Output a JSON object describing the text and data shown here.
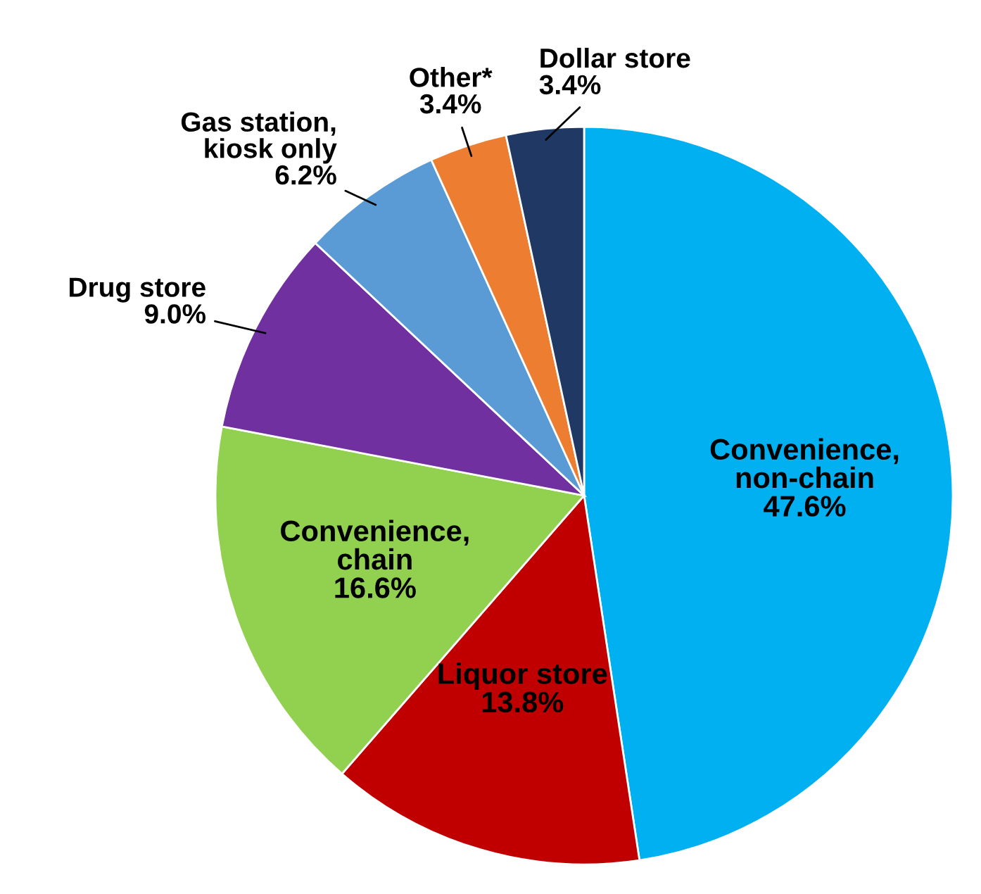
{
  "chart_data": {
    "type": "pie",
    "categories": [
      "Convenience,\nnon-chain",
      "Liquor store",
      "Convenience,\nchain",
      "Drug store",
      "Gas station,\nkiosk only",
      "Other*",
      "Dollar store"
    ],
    "values": [
      47.6,
      13.8,
      16.6,
      9.0,
      6.2,
      3.4,
      3.4
    ],
    "value_labels": [
      "47.6%",
      "13.8%",
      "16.6%",
      "9.0%",
      "6.2%",
      "3.4%",
      "3.4%"
    ],
    "colors": [
      "#00b0f0",
      "#c00000",
      "#92d050",
      "#7030a0",
      "#5b9bd5",
      "#ed7d31",
      "#1f3864"
    ]
  }
}
